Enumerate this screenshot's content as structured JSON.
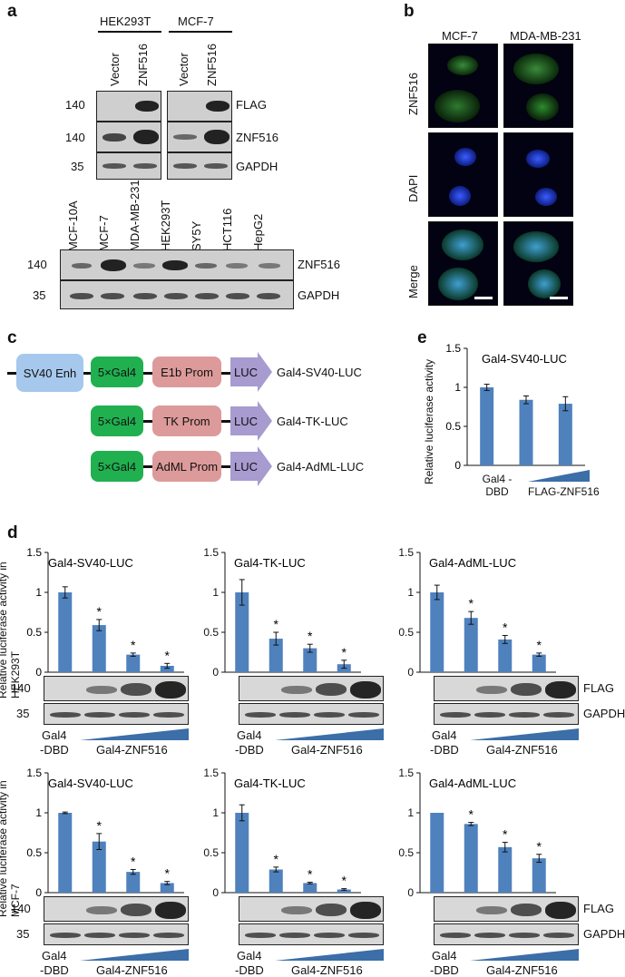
{
  "panels": {
    "a": "a",
    "b": "b",
    "c": "c",
    "d": "d",
    "e": "e"
  },
  "panel_a": {
    "groups": [
      "HEK293T",
      "MCF-7"
    ],
    "lanes": [
      "Vector",
      "ZNF516",
      "Vector",
      "ZNF516"
    ],
    "rows": [
      {
        "mw": "140",
        "label": "FLAG"
      },
      {
        "mw": "140",
        "label": "ZNF516"
      },
      {
        "mw": "35",
        "label": "GAPDH"
      }
    ],
    "cell_lines": [
      "MCF-10A",
      "MCF-7",
      "MDA-MB-231",
      "HEK293T",
      "SY5Y",
      "HCT116",
      "HepG2"
    ],
    "lower_rows": [
      {
        "mw": "140",
        "label": "ZNF516"
      },
      {
        "mw": "35",
        "label": "GAPDH"
      }
    ]
  },
  "panel_b": {
    "columns": [
      "MCF-7",
      "MDA-MB-231"
    ],
    "rows": [
      "ZNF516",
      "DAPI",
      "Merge"
    ]
  },
  "panel_c": {
    "constructs": [
      {
        "parts": [
          "SV40 Enh",
          "5×Gal4",
          "E1b Prom",
          "LUC"
        ],
        "name": "Gal4-SV40-LUC"
      },
      {
        "parts": [
          "5×Gal4",
          "TK Prom",
          "LUC"
        ],
        "name": "Gal4-TK-LUC"
      },
      {
        "parts": [
          "5×Gal4",
          "AdML Prom",
          "LUC"
        ],
        "name": "Gal4-AdML-LUC"
      }
    ]
  },
  "panel_e": {
    "ylabel": "Relative luciferase activity",
    "xlabel_left": "Gal4 -DBD",
    "xlabel_right": "FLAG-ZNF516"
  },
  "panel_d": {
    "ylabel_top": "Relative luciferase activity in HEK293T",
    "ylabel_bottom": "Relative luciferase activity in MCF-7",
    "blot_labels": {
      "mw_top": "140",
      "mw_bottom": "35",
      "flag": "FLAG",
      "gapdh": "GAPDH"
    },
    "xlabel_left_1": "Gal4",
    "xlabel_left_2": "-DBD",
    "xlabel_right": "Gal4-ZNF516",
    "star": "*"
  },
  "chart_data": [
    {
      "type": "bar",
      "title": "Gal4-SV40-LUC",
      "panel": "e",
      "categories": [
        "1",
        "2",
        "3"
      ],
      "values": [
        1.0,
        0.84,
        0.79
      ],
      "errors": [
        0.04,
        0.05,
        0.09
      ],
      "ylim": [
        0,
        1.5
      ],
      "yticks": [
        "0",
        "0.5",
        "1",
        "1.5"
      ]
    },
    {
      "type": "bar",
      "title": "Gal4-SV40-LUC",
      "panel": "d-HEK293T",
      "categories": [
        "1",
        "2",
        "3",
        "4"
      ],
      "values": [
        1.0,
        0.59,
        0.22,
        0.08
      ],
      "errors": [
        0.07,
        0.07,
        0.02,
        0.03
      ],
      "sig": [
        false,
        true,
        true,
        true
      ],
      "ylim": [
        0,
        1.5
      ],
      "yticks": [
        "0",
        "0.5",
        "1",
        "1.5"
      ]
    },
    {
      "type": "bar",
      "title": "Gal4-TK-LUC",
      "panel": "d-HEK293T",
      "categories": [
        "1",
        "2",
        "3",
        "4"
      ],
      "values": [
        1.0,
        0.42,
        0.3,
        0.1
      ],
      "errors": [
        0.16,
        0.08,
        0.05,
        0.05
      ],
      "sig": [
        false,
        true,
        true,
        true
      ],
      "ylim": [
        0,
        1.5
      ],
      "yticks": [
        "0",
        "0.5",
        "1",
        "1.5"
      ]
    },
    {
      "type": "bar",
      "title": "Gal4-AdML-LUC",
      "panel": "d-HEK293T",
      "categories": [
        "1",
        "2",
        "3",
        "4"
      ],
      "values": [
        1.0,
        0.68,
        0.41,
        0.22
      ],
      "errors": [
        0.09,
        0.08,
        0.05,
        0.02
      ],
      "sig": [
        false,
        true,
        true,
        true
      ],
      "ylim": [
        0,
        1.5
      ],
      "yticks": [
        "0",
        "0.5",
        "1",
        "1.5"
      ]
    },
    {
      "type": "bar",
      "title": "Gal4-SV40-LUC",
      "panel": "d-MCF-7",
      "categories": [
        "1",
        "2",
        "3",
        "4"
      ],
      "values": [
        1.0,
        0.64,
        0.26,
        0.12
      ],
      "errors": [
        0.01,
        0.1,
        0.03,
        0.02
      ],
      "sig": [
        false,
        true,
        true,
        true
      ],
      "ylim": [
        0,
        1.5
      ],
      "yticks": [
        "0",
        "0.5",
        "1",
        "1.5"
      ]
    },
    {
      "type": "bar",
      "title": "Gal4-TK-LUC",
      "panel": "d-MCF-7",
      "categories": [
        "1",
        "2",
        "3",
        "4"
      ],
      "values": [
        1.0,
        0.29,
        0.12,
        0.04
      ],
      "errors": [
        0.1,
        0.03,
        0.01,
        0.01
      ],
      "sig": [
        false,
        true,
        true,
        true
      ],
      "ylim": [
        0,
        1.5
      ],
      "yticks": [
        "0",
        "0.5",
        "1",
        "1.5"
      ]
    },
    {
      "type": "bar",
      "title": "Gal4-AdML-LUC",
      "panel": "d-MCF-7",
      "categories": [
        "1",
        "2",
        "3",
        "4"
      ],
      "values": [
        1.0,
        0.86,
        0.57,
        0.43
      ],
      "errors": [
        0.0,
        0.02,
        0.06,
        0.05
      ],
      "sig": [
        false,
        true,
        true,
        true
      ],
      "ylim": [
        0,
        1.5
      ],
      "yticks": [
        "0",
        "0.5",
        "1",
        "1.5"
      ]
    }
  ]
}
